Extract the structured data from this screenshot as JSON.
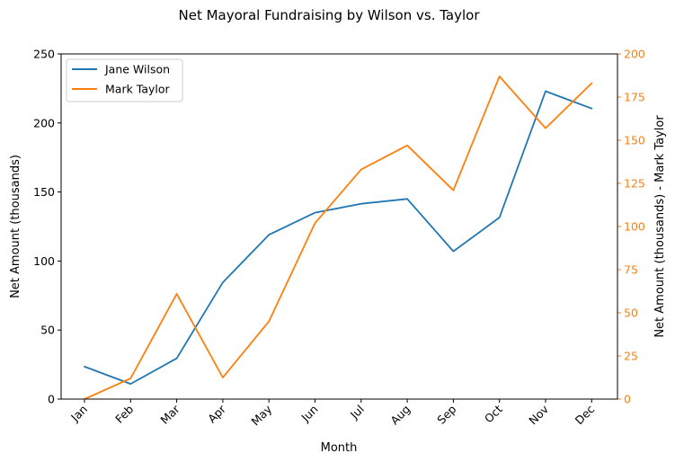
{
  "chart_data": {
    "type": "line",
    "title": "Net Mayoral Fundraising by Wilson vs. Taylor",
    "xlabel": "Month",
    "ylabel_left": "Net Amount (thousands)",
    "ylabel_right": "Net Amount (thousands) - Mark Taylor",
    "categories": [
      "Jan",
      "Feb",
      "Mar",
      "Apr",
      "May",
      "Jun",
      "Jul",
      "Aug",
      "Sep",
      "Oct",
      "Nov",
      "Dec"
    ],
    "ylim_left": [
      0,
      250
    ],
    "ylim_right": [
      0,
      200
    ],
    "yticks_left": [
      0,
      50,
      100,
      150,
      200,
      250
    ],
    "yticks_right": [
      0,
      25,
      50,
      75,
      100,
      125,
      150,
      175,
      200
    ],
    "grid": false,
    "legend_position": "top-left",
    "right_axis_color": "#ff7f0e",
    "series": [
      {
        "name": "Jane Wilson",
        "axis": "left",
        "color": "#1f77b4",
        "values": [
          23.5,
          11,
          29.5,
          84.5,
          119,
          135,
          141.5,
          145,
          107,
          131.5,
          223,
          210.5
        ]
      },
      {
        "name": "Mark Taylor",
        "axis": "right",
        "color": "#ff7f0e",
        "values": [
          0,
          12,
          61,
          12.5,
          45,
          102,
          133,
          147,
          121,
          187,
          157,
          183
        ]
      }
    ]
  }
}
